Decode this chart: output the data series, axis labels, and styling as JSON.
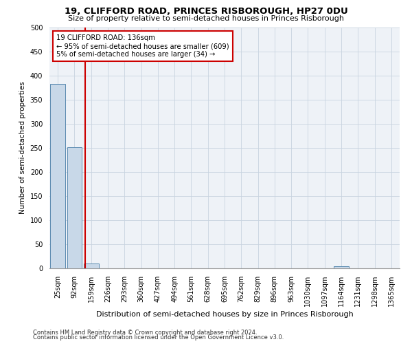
{
  "title": "19, CLIFFORD ROAD, PRINCES RISBOROUGH, HP27 0DU",
  "subtitle": "Size of property relative to semi-detached houses in Princes Risborough",
  "xlabel": "Distribution of semi-detached houses by size in Princes Risborough",
  "ylabel": "Number of semi-detached properties",
  "footnote1": "Contains HM Land Registry data © Crown copyright and database right 2024.",
  "footnote2": "Contains public sector information licensed under the Open Government Licence v3.0.",
  "bar_labels": [
    "25sqm",
    "92sqm",
    "159sqm",
    "226sqm",
    "293sqm",
    "360sqm",
    "427sqm",
    "494sqm",
    "561sqm",
    "628sqm",
    "695sqm",
    "762sqm",
    "829sqm",
    "896sqm",
    "963sqm",
    "1030sqm",
    "1097sqm",
    "1164sqm",
    "1231sqm",
    "1298sqm",
    "1365sqm"
  ],
  "bar_values": [
    383,
    252,
    10,
    0,
    0,
    0,
    0,
    0,
    0,
    0,
    0,
    0,
    0,
    0,
    0,
    0,
    0,
    5,
    0,
    0,
    0
  ],
  "bar_color": "#c8d8e8",
  "bar_edge_color": "#5a8ab0",
  "annotation_text": "19 CLIFFORD ROAD: 136sqm\n← 95% of semi-detached houses are smaller (609)\n5% of semi-detached houses are larger (34) →",
  "annotation_box_color": "#ffffff",
  "annotation_box_edge_color": "#cc0000",
  "red_line_color": "#cc0000",
  "ylim": [
    0,
    500
  ],
  "yticks": [
    0,
    50,
    100,
    150,
    200,
    250,
    300,
    350,
    400,
    450,
    500
  ],
  "grid_color": "#c8d4e0",
  "bg_color": "#eef2f7",
  "title_fontsize": 9.5,
  "subtitle_fontsize": 8,
  "ylabel_fontsize": 7.5,
  "xlabel_fontsize": 8,
  "tick_fontsize": 7,
  "footnote_fontsize": 6
}
